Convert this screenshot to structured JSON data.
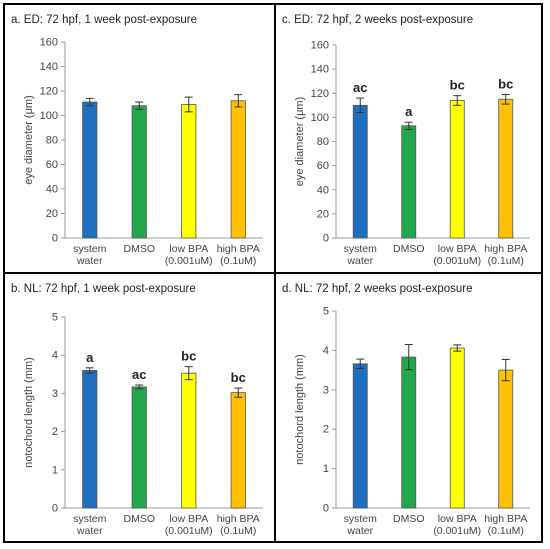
{
  "chart_data": [
    {
      "type": "bar",
      "title": "a. ED: 72 hpf, 1 week post-exposure",
      "ylabel": "eye diameter (μm)",
      "ylim": [
        0,
        160
      ],
      "yticks": [
        0,
        20,
        40,
        60,
        80,
        100,
        120,
        140,
        160
      ],
      "categories": [
        [
          "system",
          "water"
        ],
        [
          "DMSO"
        ],
        [
          "low BPA",
          "(0.001uM)"
        ],
        [
          "high BPA",
          "(0.1uM)"
        ]
      ],
      "values": [
        111,
        108,
        109,
        112
      ],
      "errors": [
        3,
        3,
        6,
        5
      ],
      "bar_labels": [
        "",
        "",
        "",
        ""
      ],
      "colors": [
        "#1f6fc0",
        "#22a84a",
        "#ffff00",
        "#ffc000"
      ]
    },
    {
      "type": "bar",
      "title": "c. ED: 72 hpf, 2 weeks post-exposure",
      "ylabel": "eye diameter (μm)",
      "ylim": [
        0,
        160
      ],
      "yticks": [
        0,
        20,
        40,
        60,
        80,
        100,
        120,
        140,
        160
      ],
      "categories": [
        [
          "system",
          "water"
        ],
        [
          "DMSO"
        ],
        [
          "low BPA",
          "(0.001uM)"
        ],
        [
          "high BPA",
          "(0.1uM)"
        ]
      ],
      "values": [
        110,
        93,
        114,
        115
      ],
      "errors": [
        6,
        3,
        4,
        4
      ],
      "bar_labels": [
        "ac",
        "a",
        "bc",
        "bc"
      ],
      "colors": [
        "#1f6fc0",
        "#22a84a",
        "#ffff00",
        "#ffc000"
      ]
    },
    {
      "type": "bar",
      "title": "b. NL: 72 hpf, 1 week post-exposure",
      "ylabel": "notochord length (mm)",
      "ylim": [
        0,
        5
      ],
      "yticks": [
        0,
        1,
        2,
        3,
        4,
        5
      ],
      "categories": [
        [
          "system",
          "water"
        ],
        [
          "DMSO"
        ],
        [
          "low BPA",
          "(0.001uM)"
        ],
        [
          "high BPA",
          "(0.1uM)"
        ]
      ],
      "values": [
        3.6,
        3.17,
        3.53,
        3.02
      ],
      "errors": [
        0.07,
        0.05,
        0.17,
        0.12
      ],
      "bar_labels": [
        "a",
        "ac",
        "bc",
        "bc"
      ],
      "colors": [
        "#1f6fc0",
        "#22a84a",
        "#ffff00",
        "#ffc000"
      ]
    },
    {
      "type": "bar",
      "title": "d. NL: 72 hpf, 2 weeks post-exposure",
      "ylabel": "notochord length (mm)",
      "ylim": [
        0,
        5
      ],
      "yticks": [
        0,
        1,
        2,
        3,
        4,
        5
      ],
      "categories": [
        [
          "system",
          "water"
        ],
        [
          "DMSO"
        ],
        [
          "low BPA",
          "(0.001uM)"
        ],
        [
          "high BPA",
          "(0.1uM)"
        ]
      ],
      "values": [
        3.66,
        3.83,
        4.06,
        3.5
      ],
      "errors": [
        0.12,
        0.32,
        0.08,
        0.27
      ],
      "bar_labels": [
        "",
        "",
        "",
        ""
      ],
      "colors": [
        "#1f6fc0",
        "#22a84a",
        "#ffff00",
        "#ffc000"
      ]
    }
  ]
}
